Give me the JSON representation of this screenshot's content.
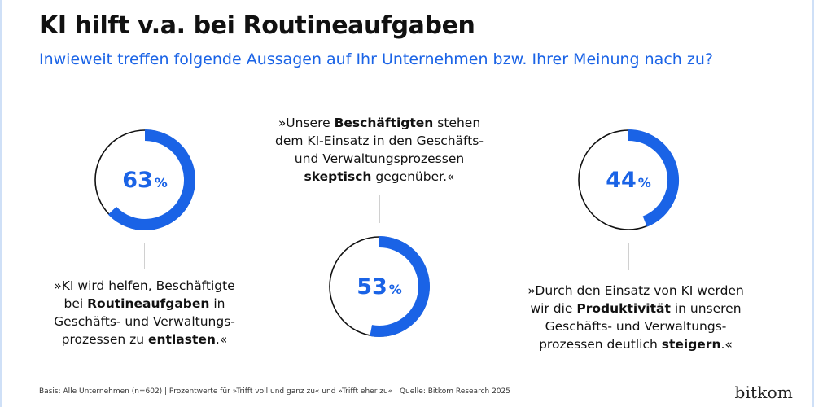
{
  "title": "KI hilft v.a. bei Routineaufgaben",
  "subtitle": "Inwieweit treffen folgende Aussagen auf Ihr Unternehmen bzw. Ihrer Meinung nach zu?",
  "colors": {
    "accent": "#1a63e6",
    "ring": "#111111",
    "connector": "#d0d0d0"
  },
  "chart_data": [
    {
      "type": "pie",
      "value": 63,
      "value_label": "63",
      "unit": "%",
      "statement": [
        [
          {
            "t": "»KI wird helfen, Beschäftigte",
            "b": false
          }
        ],
        [
          {
            "t": "bei ",
            "b": false
          },
          {
            "t": "Routineaufgaben",
            "b": true
          },
          {
            "t": " in",
            "b": false
          }
        ],
        [
          {
            "t": "Geschäfts- und Verwaltungs-",
            "b": false
          }
        ],
        [
          {
            "t": "prozessen zu ",
            "b": false
          },
          {
            "t": "entlasten",
            "b": true
          },
          {
            "t": ".«",
            "b": false
          }
        ]
      ]
    },
    {
      "type": "pie",
      "value": 53,
      "value_label": "53",
      "unit": "%",
      "statement": [
        [
          {
            "t": "»Unsere ",
            "b": false
          },
          {
            "t": "Beschäftigten",
            "b": true
          },
          {
            "t": " stehen",
            "b": false
          }
        ],
        [
          {
            "t": "dem KI-Einsatz in den Geschäfts-",
            "b": false
          }
        ],
        [
          {
            "t": "und Verwaltungsprozessen",
            "b": false
          }
        ],
        [
          {
            "t": "skeptisch",
            "b": true
          },
          {
            "t": " gegenüber.«",
            "b": false
          }
        ]
      ]
    },
    {
      "type": "pie",
      "value": 44,
      "value_label": "44",
      "unit": "%",
      "statement": [
        [
          {
            "t": "»Durch den Einsatz von KI werden",
            "b": false
          }
        ],
        [
          {
            "t": "wir die ",
            "b": false
          },
          {
            "t": "Produktivität",
            "b": true
          },
          {
            "t": " in unseren",
            "b": false
          }
        ],
        [
          {
            "t": "Geschäfts- und Verwaltungs-",
            "b": false
          }
        ],
        [
          {
            "t": "prozessen deutlich ",
            "b": false
          },
          {
            "t": "steigern",
            "b": true
          },
          {
            "t": ".«",
            "b": false
          }
        ]
      ]
    }
  ],
  "footer": "Basis: Alle Unternehmen (n=602) | Prozentwerte für »Trifft voll und ganz zu« und »Trifft eher zu« | Quelle: Bitkom Research 2025",
  "logo": "bitkom"
}
